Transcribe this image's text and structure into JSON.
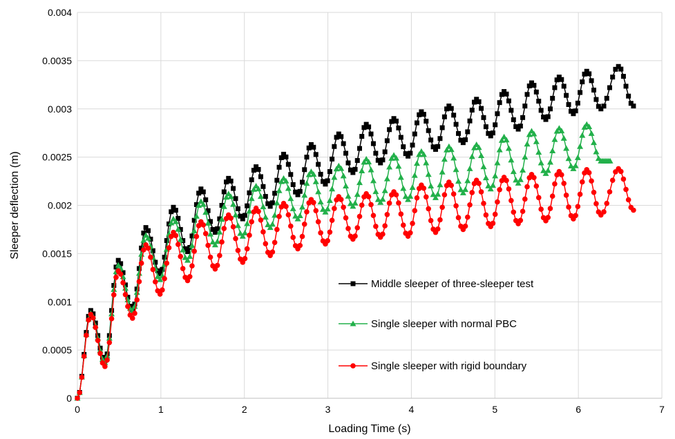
{
  "chart_data": {
    "type": "line",
    "title": "",
    "xlabel": "Loading Time (s)",
    "ylabel": "Sleeper deflection (m)",
    "xlim": [
      0,
      7
    ],
    "ylim": [
      0,
      0.004
    ],
    "x_ticks": [
      "0",
      "1",
      "2",
      "3",
      "4",
      "5",
      "6",
      "7"
    ],
    "y_ticks": [
      "0",
      "0.0005",
      "0.001",
      "0.0015",
      "0.002",
      "0.0025",
      "0.003",
      "0.0035",
      "0.004"
    ],
    "grid": "vertical and horizontal major gridlines",
    "legend_position": "inside, lower right",
    "series": [
      {
        "name": "Middle sleeper of three-sleeper test",
        "color": "#000000",
        "marker": "square",
        "x": [
          0,
          0.16,
          0.33,
          0.49,
          0.66,
          0.82,
          0.99,
          1.15,
          1.32,
          1.48,
          1.65,
          1.81,
          1.98,
          2.14,
          2.31,
          2.47,
          2.64,
          2.8,
          2.97,
          3.13,
          3.3,
          3.46,
          3.63,
          3.79,
          3.96,
          4.12,
          4.29,
          4.45,
          4.62,
          4.78,
          4.95,
          5.11,
          5.28,
          5.44,
          5.61,
          5.77,
          5.94,
          6.1,
          6.27,
          6.48,
          6.66
        ],
        "y": [
          0,
          0.00091,
          0.00039,
          0.00143,
          0.00092,
          0.00177,
          0.00129,
          0.00198,
          0.00152,
          0.00217,
          0.00172,
          0.00228,
          0.00186,
          0.0024,
          0.00199,
          0.00253,
          0.00211,
          0.00263,
          0.00222,
          0.00274,
          0.00234,
          0.00284,
          0.00244,
          0.0029,
          0.00251,
          0.00297,
          0.00258,
          0.00303,
          0.00265,
          0.0031,
          0.00272,
          0.00318,
          0.00279,
          0.00327,
          0.00289,
          0.00333,
          0.00295,
          0.00339,
          0.003,
          0.00344,
          0.00303
        ]
      },
      {
        "name": "Single sleeper with normal PBC",
        "color": "#22b04a",
        "marker": "triangle",
        "x": [
          0,
          0.16,
          0.33,
          0.49,
          0.66,
          0.82,
          0.99,
          1.15,
          1.32,
          1.48,
          1.65,
          1.81,
          1.98,
          2.14,
          2.31,
          2.47,
          2.64,
          2.8,
          2.97,
          3.13,
          3.3,
          3.46,
          3.63,
          3.79,
          3.96,
          4.12,
          4.29,
          4.45,
          4.62,
          4.78,
          4.95,
          5.11,
          5.28,
          5.44,
          5.61,
          5.77,
          5.94,
          6.1,
          6.27,
          6.38
        ],
        "y": [
          0,
          0.00088,
          0.00037,
          0.00138,
          0.0009,
          0.00169,
          0.00123,
          0.00186,
          0.00143,
          0.00204,
          0.00159,
          0.00212,
          0.00168,
          0.0022,
          0.00177,
          0.00228,
          0.00186,
          0.00235,
          0.00193,
          0.00241,
          0.00199,
          0.00248,
          0.00203,
          0.00252,
          0.00206,
          0.00256,
          0.00208,
          0.00261,
          0.00213,
          0.00263,
          0.00217,
          0.00271,
          0.00223,
          0.00277,
          0.00233,
          0.0028,
          0.00238,
          0.00284,
          0.00246,
          0.00246
        ]
      },
      {
        "name": "Single sleeper with rigid boundary",
        "color": "#ff0000",
        "marker": "circle",
        "x": [
          0,
          0.16,
          0.33,
          0.49,
          0.66,
          0.82,
          0.99,
          1.15,
          1.32,
          1.48,
          1.65,
          1.81,
          1.98,
          2.14,
          2.31,
          2.47,
          2.64,
          2.8,
          2.97,
          3.13,
          3.3,
          3.46,
          3.63,
          3.79,
          3.96,
          4.12,
          4.29,
          4.45,
          4.62,
          4.78,
          4.95,
          5.11,
          5.28,
          5.44,
          5.61,
          5.77,
          5.94,
          6.1,
          6.27,
          6.48,
          6.66
        ],
        "y": [
          0,
          0.00087,
          0.00033,
          0.00132,
          0.00083,
          0.00159,
          0.00108,
          0.00172,
          0.00122,
          0.00183,
          0.00134,
          0.0019,
          0.00141,
          0.00197,
          0.00148,
          0.00202,
          0.00155,
          0.00206,
          0.0016,
          0.00209,
          0.00165,
          0.00212,
          0.00167,
          0.00214,
          0.00168,
          0.00221,
          0.00172,
          0.00224,
          0.00175,
          0.00226,
          0.00178,
          0.00229,
          0.00181,
          0.00232,
          0.00184,
          0.00235,
          0.00186,
          0.00237,
          0.0019,
          0.00238,
          0.00195
        ]
      }
    ]
  }
}
